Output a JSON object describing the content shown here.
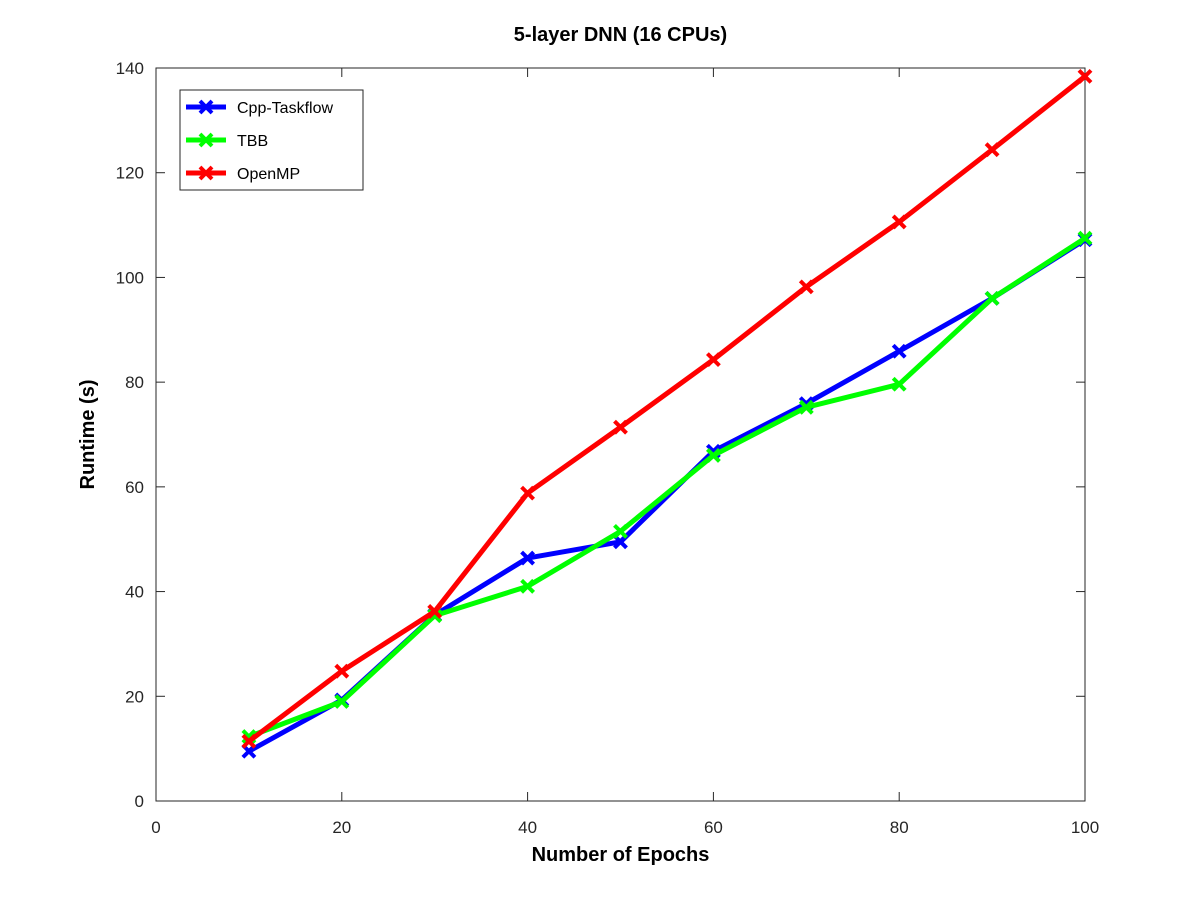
{
  "chart_data": {
    "type": "line",
    "title": "5-layer DNN (16 CPUs)",
    "xlabel": "Number of Epochs",
    "ylabel": "Runtime (s)",
    "xlim": [
      0,
      100
    ],
    "ylim": [
      0,
      140
    ],
    "xticks": [
      0,
      20,
      40,
      60,
      80,
      100
    ],
    "yticks": [
      0,
      20,
      40,
      60,
      80,
      100,
      120,
      140
    ],
    "x": [
      10,
      20,
      30,
      40,
      50,
      60,
      70,
      80,
      90,
      100
    ],
    "grid": false,
    "legend_position": "top-left",
    "series": [
      {
        "name": "Cpp-Taskflow",
        "color": "#0000ff",
        "marker": "x",
        "values": [
          9.5,
          19.3,
          35.5,
          46.4,
          49.5,
          66.8,
          75.9,
          85.9,
          96.0,
          107.2
        ]
      },
      {
        "name": "TBB",
        "color": "#00ff00",
        "marker": "x",
        "values": [
          12.3,
          19.0,
          35.4,
          41.0,
          51.5,
          66.0,
          75.2,
          79.6,
          96.0,
          107.5
        ]
      },
      {
        "name": "OpenMP",
        "color": "#ff0000",
        "marker": "x",
        "values": [
          11.4,
          24.8,
          36.2,
          58.8,
          71.4,
          84.3,
          98.2,
          110.6,
          124.4,
          138.4
        ]
      }
    ]
  }
}
